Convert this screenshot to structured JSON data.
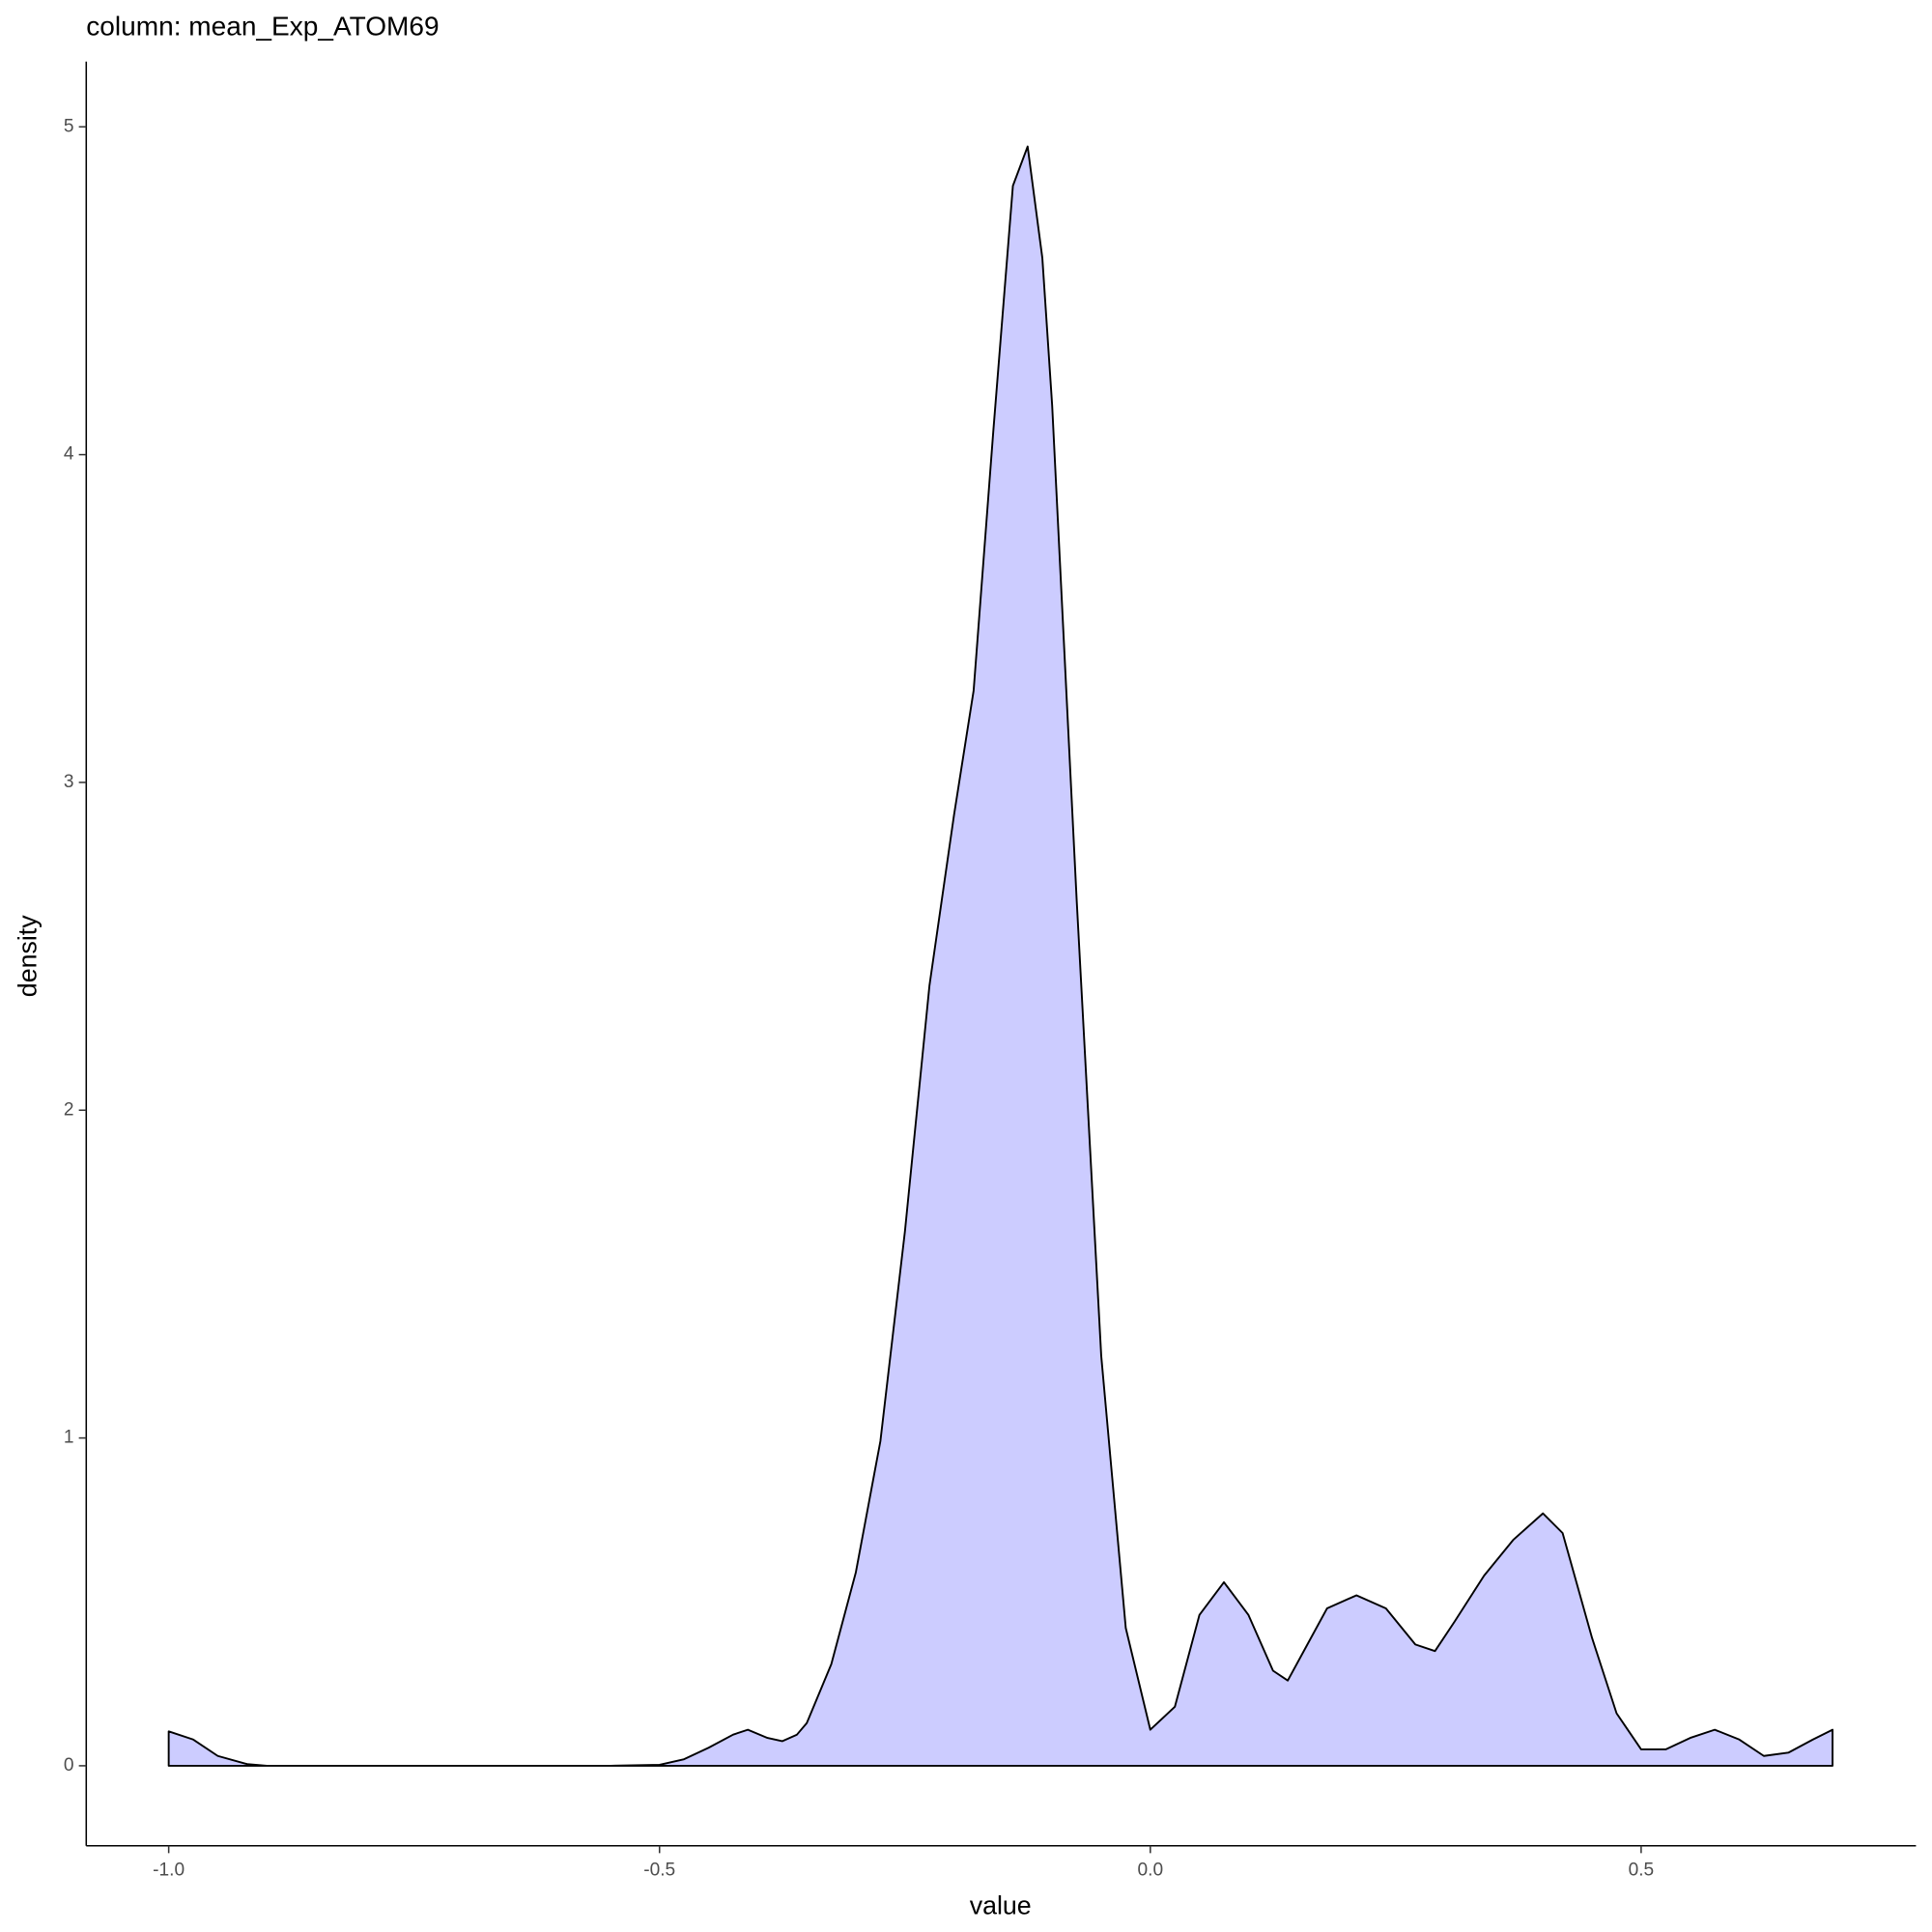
{
  "chart_data": {
    "type": "area",
    "title": "column: mean_Exp_ATOM69",
    "x_label": "value",
    "y_label": "density",
    "x": [
      -1.0,
      -0.975,
      -0.95,
      -0.92,
      -0.9,
      -0.55,
      -0.5,
      -0.475,
      -0.45,
      -0.425,
      -0.41,
      -0.39,
      -0.375,
      -0.36,
      -0.35,
      -0.325,
      -0.3,
      -0.275,
      -0.25,
      -0.225,
      -0.2,
      -0.18,
      -0.16,
      -0.14,
      -0.125,
      -0.11,
      -0.1,
      -0.075,
      -0.05,
      -0.025,
      0.0,
      0.025,
      0.05,
      0.075,
      0.1,
      0.125,
      0.14,
      0.16,
      0.18,
      0.21,
      0.24,
      0.27,
      0.29,
      0.31,
      0.34,
      0.37,
      0.4,
      0.42,
      0.45,
      0.475,
      0.5,
      0.525,
      0.55,
      0.575,
      0.6,
      0.625,
      0.65,
      0.675,
      0.695
    ],
    "values": [
      0.105,
      0.08,
      0.03,
      0.005,
      0,
      0,
      0.003,
      0.02,
      0.055,
      0.095,
      0.11,
      0.085,
      0.075,
      0.095,
      0.13,
      0.31,
      0.59,
      0.99,
      1.63,
      2.38,
      2.9,
      3.28,
      4.07,
      4.82,
      4.94,
      4.6,
      4.15,
      2.64,
      1.25,
      0.42,
      0.11,
      0.18,
      0.46,
      0.56,
      0.46,
      0.29,
      0.26,
      0.37,
      0.48,
      0.52,
      0.48,
      0.37,
      0.35,
      0.44,
      0.58,
      0.69,
      0.77,
      0.71,
      0.39,
      0.16,
      0.05,
      0.05,
      0.085,
      0.11,
      0.08,
      0.03,
      0.04,
      0.08,
      0.11
    ],
    "color": "#ccccff",
    "line_color": "#000000",
    "xlim": [
      -1.084,
      0.78
    ],
    "ylim": [
      -0.244,
      5.199
    ],
    "xticks": [
      {
        "value": -1.0,
        "label": "-1.0"
      },
      {
        "value": -0.5,
        "label": "-0.5"
      },
      {
        "value": 0.0,
        "label": "0.0"
      },
      {
        "value": 0.5,
        "label": "0.5"
      }
    ],
    "yticks": [
      0,
      1,
      2,
      3,
      4,
      5
    ]
  }
}
